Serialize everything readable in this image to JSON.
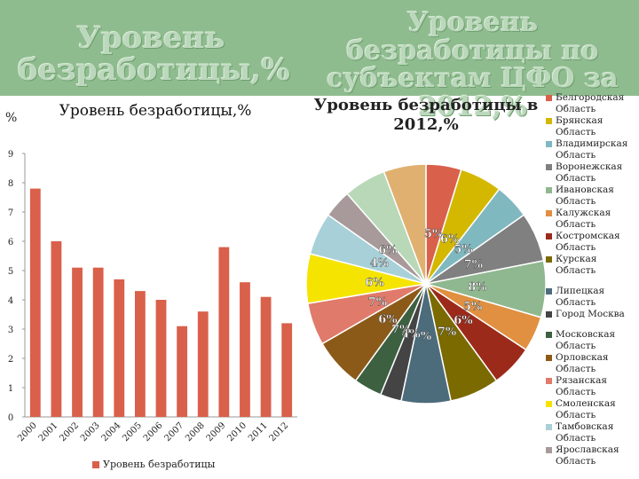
{
  "left_title": "Уровень безработицы,%",
  "right_title": "Уровень безработицы по субъектам ЦФО за 2012,%",
  "chart_data": [
    {
      "type": "bar",
      "title": "Уровень безработицы,%",
      "ylabel": "%",
      "xlabel": "",
      "categories": [
        "2000",
        "2001",
        "2002",
        "2003",
        "2004",
        "2005",
        "2006",
        "2007",
        "2008",
        "2009",
        "2010",
        "2011",
        "2012"
      ],
      "series": [
        {
          "name": "Уровень безработицы",
          "values": [
            7.8,
            6.0,
            5.1,
            5.1,
            4.7,
            4.3,
            4.0,
            3.1,
            3.6,
            5.8,
            4.6,
            4.1,
            3.2
          ],
          "color": "#d9604a"
        }
      ],
      "ylim": [
        0,
        9
      ],
      "yticks": [
        0,
        1,
        2,
        3,
        4,
        5,
        6,
        7,
        8,
        9
      ],
      "grid": false,
      "legend": "bottom"
    },
    {
      "type": "pie",
      "title": "Уровень безработицы в 2012,%",
      "legend": "right",
      "slices": [
        {
          "label": "Белгородская Область",
          "value": 5,
          "color": "#d9604a"
        },
        {
          "label": "Брянская Область",
          "value": 6,
          "color": "#d4b800"
        },
        {
          "label": "Владимирская Область",
          "value": 5,
          "color": "#80b8c0"
        },
        {
          "label": "Воронежская Область",
          "value": 7,
          "color": "#808080"
        },
        {
          "label": "Ивановская Область",
          "value": 8,
          "color": "#90b890"
        },
        {
          "label": "Калужская Область",
          "value": 5,
          "color": "#e09040"
        },
        {
          "label": "Костромская Область",
          "value": 6,
          "color": "#9c2a1a"
        },
        {
          "label": "Курская Область",
          "value": 7,
          "color": "#7a6a00"
        },
        {
          "label": "Липецкая Область",
          "value": 7,
          "color": "#4c6c7c"
        },
        {
          "label": "Город Москва",
          "value": 3,
          "color": "#444444"
        },
        {
          "label": "Московская Область",
          "value": 4,
          "color": "#3c6040"
        },
        {
          "label": "Орловская Область",
          "value": 7,
          "color": "#8c5a18"
        },
        {
          "label": "Рязанская Область",
          "value": 6,
          "color": "#e07a6a"
        },
        {
          "label": "Смоленская Область",
          "value": 7,
          "color": "#f5e400"
        },
        {
          "label": "Тамбовская Область",
          "value": 6,
          "color": "#a8d0d8"
        },
        {
          "label": "Ярославская Область",
          "value": 4,
          "color": "#a89a9a"
        }
      ],
      "extra_slices": [
        {
          "value": 6,
          "color": "#b8d8b8"
        },
        {
          "value": 6,
          "color": "#e0b070"
        }
      ],
      "label_values": [
        "5%",
        "6%",
        "5%",
        "7%",
        "8%",
        "5%",
        "6%",
        "7%",
        "%",
        "4%",
        "7%",
        "6%",
        "7%",
        "6%",
        "4%",
        "6%"
      ]
    }
  ]
}
